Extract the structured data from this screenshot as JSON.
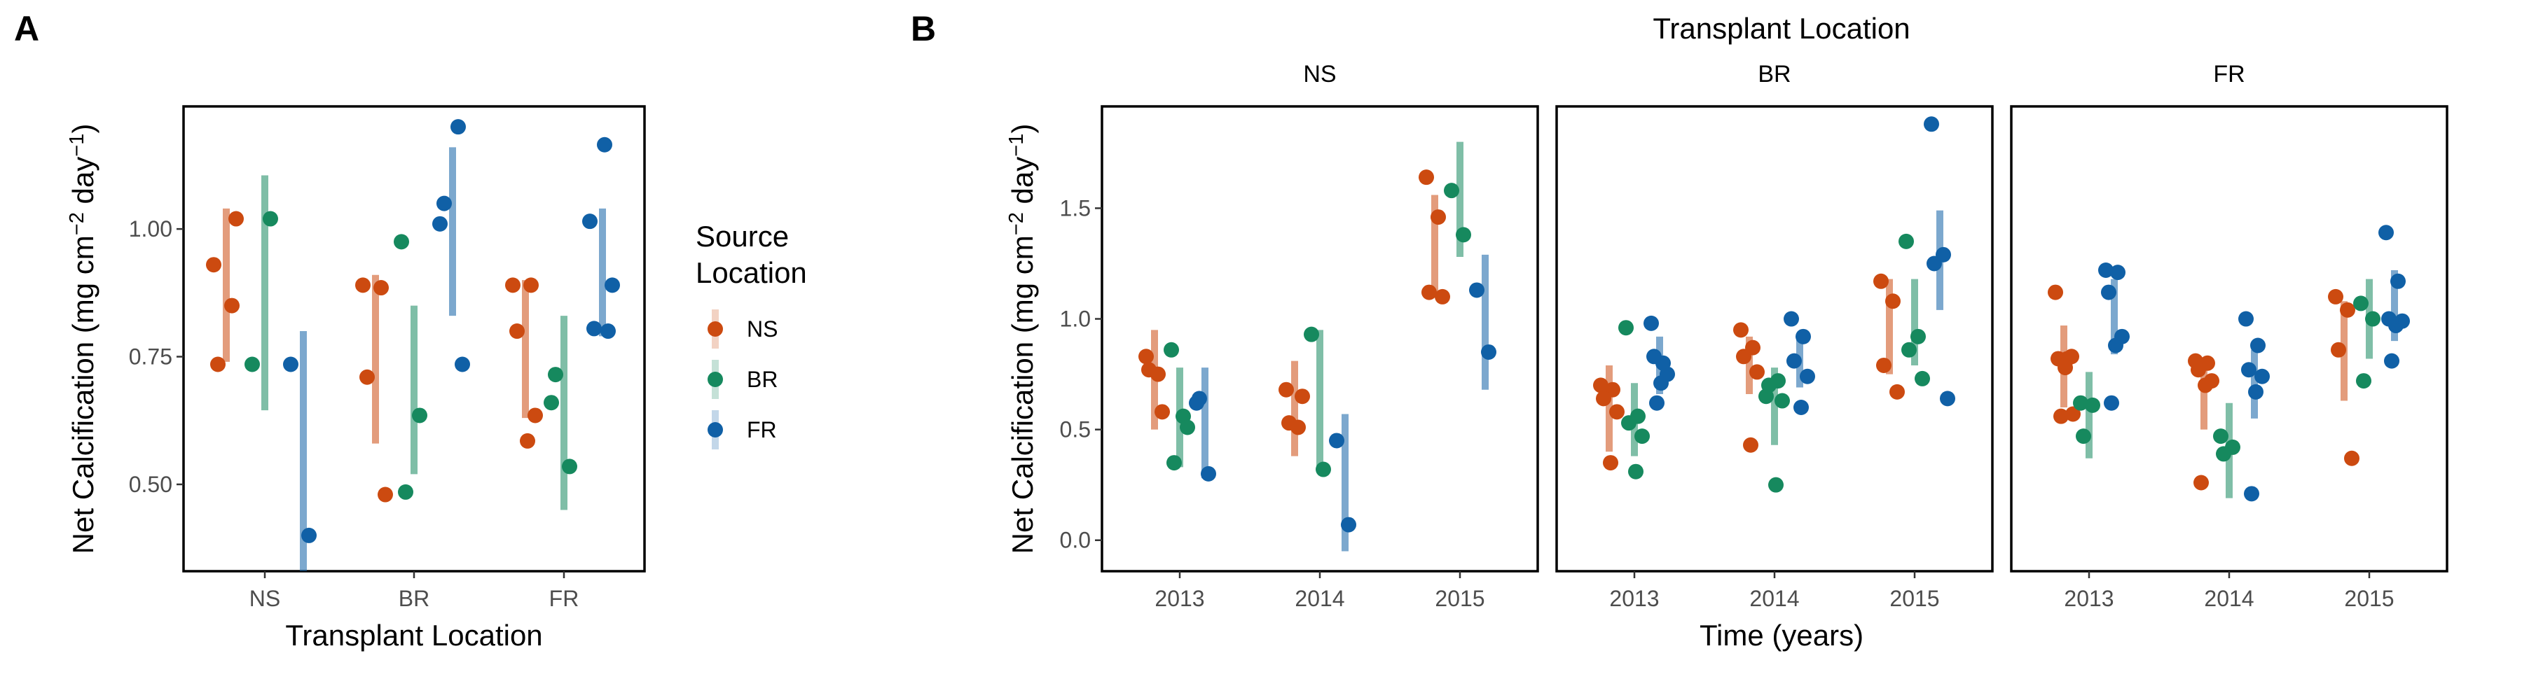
{
  "colors": {
    "NS": "#CC4A10",
    "BR": "#16895E",
    "FR": "#1060A6"
  },
  "panel_labels": [
    "A",
    "B"
  ],
  "legend": {
    "title_line1": "Source",
    "title_line2": "Location",
    "items": [
      "NS",
      "BR",
      "FR"
    ]
  },
  "chart_data": [
    {
      "type": "scatter",
      "panel": "A",
      "xlabel": "Transplant Location",
      "ylabel_prefix": "Net Calcification (mg cm",
      "ylabel_sup1": "−2",
      "ylabel_mid": " day",
      "ylabel_sup2": "−1",
      "ylabel_suffix": ")",
      "categories": [
        "NS",
        "BR",
        "FR"
      ],
      "ylim": [
        0.33,
        1.24
      ],
      "yticks": [
        0.5,
        0.75,
        1.0
      ],
      "ytick_labels": [
        "0.50",
        "0.75",
        "1.00"
      ],
      "grid": false,
      "legend_position": "right",
      "groups": [
        {
          "category": "NS",
          "source": "NS",
          "points": [
            0.93,
            0.85,
            0.735,
            1.02
          ],
          "range": [
            0.74,
            1.04
          ]
        },
        {
          "category": "NS",
          "source": "BR",
          "points": [
            0.735,
            1.02
          ],
          "range": [
            0.645,
            1.105
          ]
        },
        {
          "category": "NS",
          "source": "FR",
          "points": [
            0.735,
            0.4
          ],
          "range": [
            0.33,
            0.8
          ]
        },
        {
          "category": "BR",
          "source": "NS",
          "points": [
            0.89,
            0.885,
            0.71,
            0.48
          ],
          "range": [
            0.58,
            0.91
          ]
        },
        {
          "category": "BR",
          "source": "BR",
          "points": [
            0.975,
            0.635,
            0.485
          ],
          "range": [
            0.52,
            0.85
          ]
        },
        {
          "category": "BR",
          "source": "FR",
          "points": [
            1.01,
            1.2,
            1.05,
            0.735
          ],
          "range": [
            0.83,
            1.16
          ]
        },
        {
          "category": "FR",
          "source": "NS",
          "points": [
            0.89,
            0.89,
            0.8,
            0.635,
            0.585
          ],
          "range": [
            0.63,
            0.9
          ]
        },
        {
          "category": "FR",
          "source": "BR",
          "points": [
            0.66,
            0.535,
            0.715
          ],
          "range": [
            0.45,
            0.83
          ]
        },
        {
          "category": "FR",
          "source": "FR",
          "points": [
            1.015,
            0.8,
            0.805,
            0.89,
            1.165
          ],
          "range": [
            0.79,
            1.04
          ]
        }
      ]
    },
    {
      "type": "scatter",
      "panel": "B",
      "title": "Transplant Location",
      "xlabel": "Time (years)",
      "ylabel_prefix": "Net Calcification (mg cm",
      "ylabel_sup1": "−2",
      "ylabel_mid": " day",
      "ylabel_sup2": "−1",
      "ylabel_suffix": ")",
      "categories": [
        "2013",
        "2014",
        "2015"
      ],
      "ylim": [
        -0.14,
        1.96
      ],
      "yticks": [
        0.0,
        0.5,
        1.0,
        1.5
      ],
      "ytick_labels": [
        "0.0",
        "0.5",
        "1.0",
        "1.5"
      ],
      "grid": false,
      "facets": [
        {
          "label": "NS",
          "groups": [
            {
              "category": "2013",
              "source": "NS",
              "points": [
                0.83,
                0.75,
                0.77,
                0.58
              ],
              "range": [
                0.5,
                0.95
              ]
            },
            {
              "category": "2013",
              "source": "BR",
              "points": [
                0.86,
                0.56,
                0.35,
                0.51
              ],
              "range": [
                0.33,
                0.78
              ]
            },
            {
              "category": "2013",
              "source": "FR",
              "points": [
                0.62,
                0.3,
                0.64
              ],
              "range": [
                0.28,
                0.78
              ]
            },
            {
              "category": "2014",
              "source": "NS",
              "points": [
                0.68,
                0.51,
                0.53,
                0.65
              ],
              "range": [
                0.38,
                0.81
              ]
            },
            {
              "category": "2014",
              "source": "BR",
              "points": [
                0.93,
                0.32
              ],
              "range": [
                0.32,
                0.95
              ]
            },
            {
              "category": "2014",
              "source": "FR",
              "points": [
                0.45,
                0.07
              ],
              "range": [
                -0.05,
                0.57
              ]
            },
            {
              "category": "2015",
              "source": "NS",
              "points": [
                1.64,
                1.46,
                1.12,
                1.1
              ],
              "range": [
                1.1,
                1.56
              ]
            },
            {
              "category": "2015",
              "source": "BR",
              "points": [
                1.58,
                1.38
              ],
              "range": [
                1.28,
                1.8
              ]
            },
            {
              "category": "2015",
              "source": "FR",
              "points": [
                1.13,
                0.85
              ],
              "range": [
                0.68,
                1.29
              ]
            }
          ]
        },
        {
          "label": "BR",
          "groups": [
            {
              "category": "2013",
              "source": "NS",
              "points": [
                0.7,
                0.68,
                0.64,
                0.58,
                0.35
              ],
              "range": [
                0.4,
                0.79
              ]
            },
            {
              "category": "2013",
              "source": "BR",
              "points": [
                0.96,
                0.56,
                0.53,
                0.47,
                0.31
              ],
              "range": [
                0.38,
                0.71
              ]
            },
            {
              "category": "2013",
              "source": "FR",
              "points": [
                0.98,
                0.8,
                0.83,
                0.75,
                0.71,
                0.62
              ],
              "range": [
                0.66,
                0.92
              ]
            },
            {
              "category": "2014",
              "source": "NS",
              "points": [
                0.95,
                0.87,
                0.83,
                0.76,
                0.43
              ],
              "range": [
                0.66,
                0.92
              ]
            },
            {
              "category": "2014",
              "source": "BR",
              "points": [
                0.65,
                0.72,
                0.7,
                0.63,
                0.25
              ],
              "range": [
                0.43,
                0.78
              ]
            },
            {
              "category": "2014",
              "source": "FR",
              "points": [
                1.0,
                0.92,
                0.81,
                0.74,
                0.6
              ],
              "range": [
                0.69,
                0.93
              ]
            },
            {
              "category": "2015",
              "source": "NS",
              "points": [
                1.17,
                1.08,
                0.79,
                0.67
              ],
              "range": [
                0.75,
                1.18
              ]
            },
            {
              "category": "2015",
              "source": "BR",
              "points": [
                1.35,
                0.92,
                0.86,
                0.73
              ],
              "range": [
                0.79,
                1.18
              ]
            },
            {
              "category": "2015",
              "source": "FR",
              "points": [
                1.88,
                1.29,
                1.25,
                0.64
              ],
              "range": [
                1.04,
                1.49
              ]
            }
          ]
        },
        {
          "label": "FR",
          "groups": [
            {
              "category": "2013",
              "source": "NS",
              "points": [
                1.12,
                0.82,
                0.82,
                0.83,
                0.78,
                0.56,
                0.57
              ],
              "range": [
                0.6,
                0.97
              ]
            },
            {
              "category": "2013",
              "source": "BR",
              "points": [
                0.62,
                0.61,
                0.47
              ],
              "range": [
                0.37,
                0.76
              ]
            },
            {
              "category": "2013",
              "source": "FR",
              "points": [
                1.22,
                1.21,
                1.12,
                0.92,
                0.88,
                0.62
              ],
              "range": [
                0.84,
                1.18
              ]
            },
            {
              "category": "2014",
              "source": "NS",
              "points": [
                0.81,
                0.8,
                0.77,
                0.72,
                0.7,
                0.26
              ],
              "range": [
                0.5,
                0.82
              ]
            },
            {
              "category": "2014",
              "source": "BR",
              "points": [
                0.47,
                0.42,
                0.39
              ],
              "range": [
                0.19,
                0.62
              ]
            },
            {
              "category": "2014",
              "source": "FR",
              "points": [
                1.0,
                0.88,
                0.77,
                0.74,
                0.67,
                0.21
              ],
              "range": [
                0.55,
                0.86
              ]
            },
            {
              "category": "2015",
              "source": "NS",
              "points": [
                1.1,
                1.04,
                0.86,
                0.37
              ],
              "range": [
                0.63,
                1.08
              ]
            },
            {
              "category": "2015",
              "source": "BR",
              "points": [
                1.07,
                1.0,
                0.72
              ],
              "range": [
                0.82,
                1.18
              ]
            },
            {
              "category": "2015",
              "source": "FR",
              "points": [
                1.39,
                1.17,
                1.0,
                0.99,
                0.97,
                0.81
              ],
              "range": [
                0.9,
                1.22
              ]
            }
          ]
        }
      ]
    }
  ]
}
